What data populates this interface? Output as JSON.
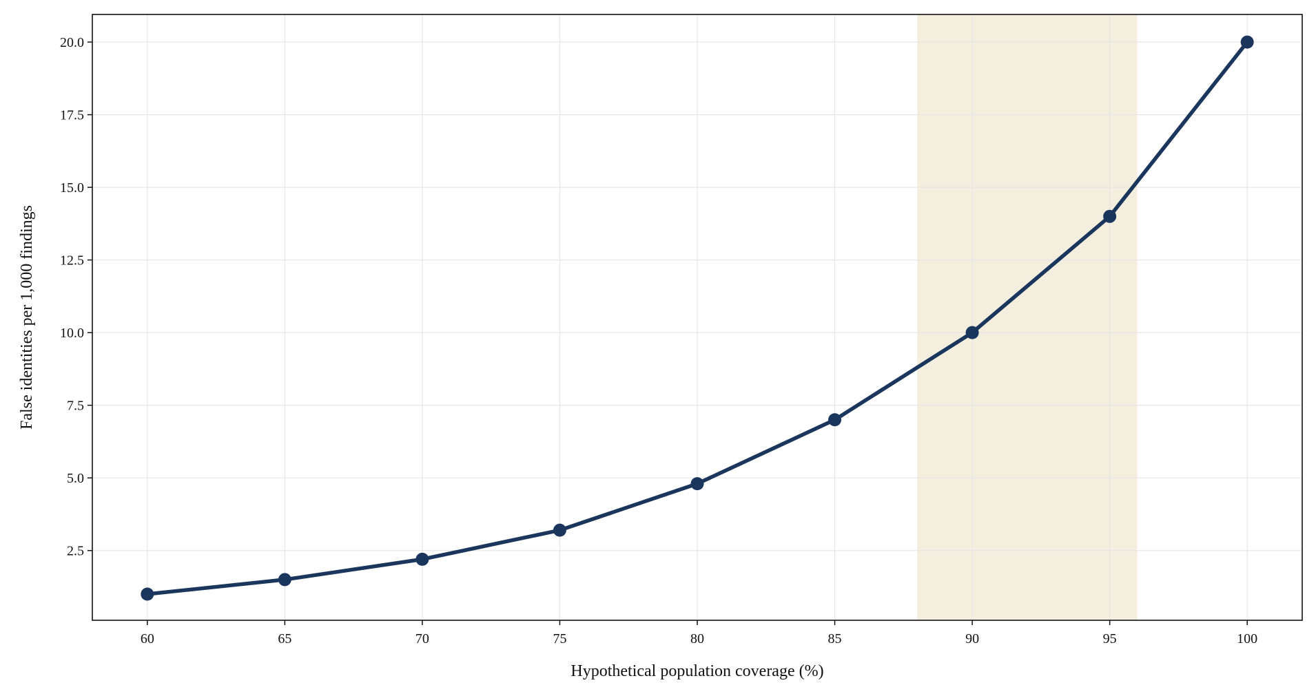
{
  "chart_data": {
    "type": "line",
    "title": "",
    "xlabel": "Hypothetical population coverage (%)",
    "ylabel": "False identities per 1,000 findings",
    "x": [
      60,
      65,
      70,
      75,
      80,
      85,
      90,
      95,
      100
    ],
    "series": [
      {
        "values": [
          1.0,
          1.5,
          2.2,
          3.2,
          4.8,
          7.0,
          10.0,
          14.0,
          20.0
        ],
        "color": "#1b365d"
      }
    ],
    "xlim": [
      58,
      102
    ],
    "ylim": [
      0.1,
      20.95
    ],
    "xticks": [
      60,
      65,
      70,
      75,
      80,
      85,
      90,
      95,
      100
    ],
    "xtick_labels": [
      "60",
      "65",
      "70",
      "75",
      "80",
      "85",
      "90",
      "95",
      "100"
    ],
    "yticks": [
      2.5,
      5.0,
      7.5,
      10.0,
      12.5,
      15.0,
      17.5,
      20.0
    ],
    "ytick_labels": [
      "2.5",
      "5.0",
      "7.5",
      "10.0",
      "12.5",
      "15.0",
      "17.5",
      "20.0"
    ],
    "highlight_band": {
      "x_start": 88,
      "x_end": 96,
      "color": "#f3eedd"
    },
    "grid": true,
    "legend": "none"
  }
}
